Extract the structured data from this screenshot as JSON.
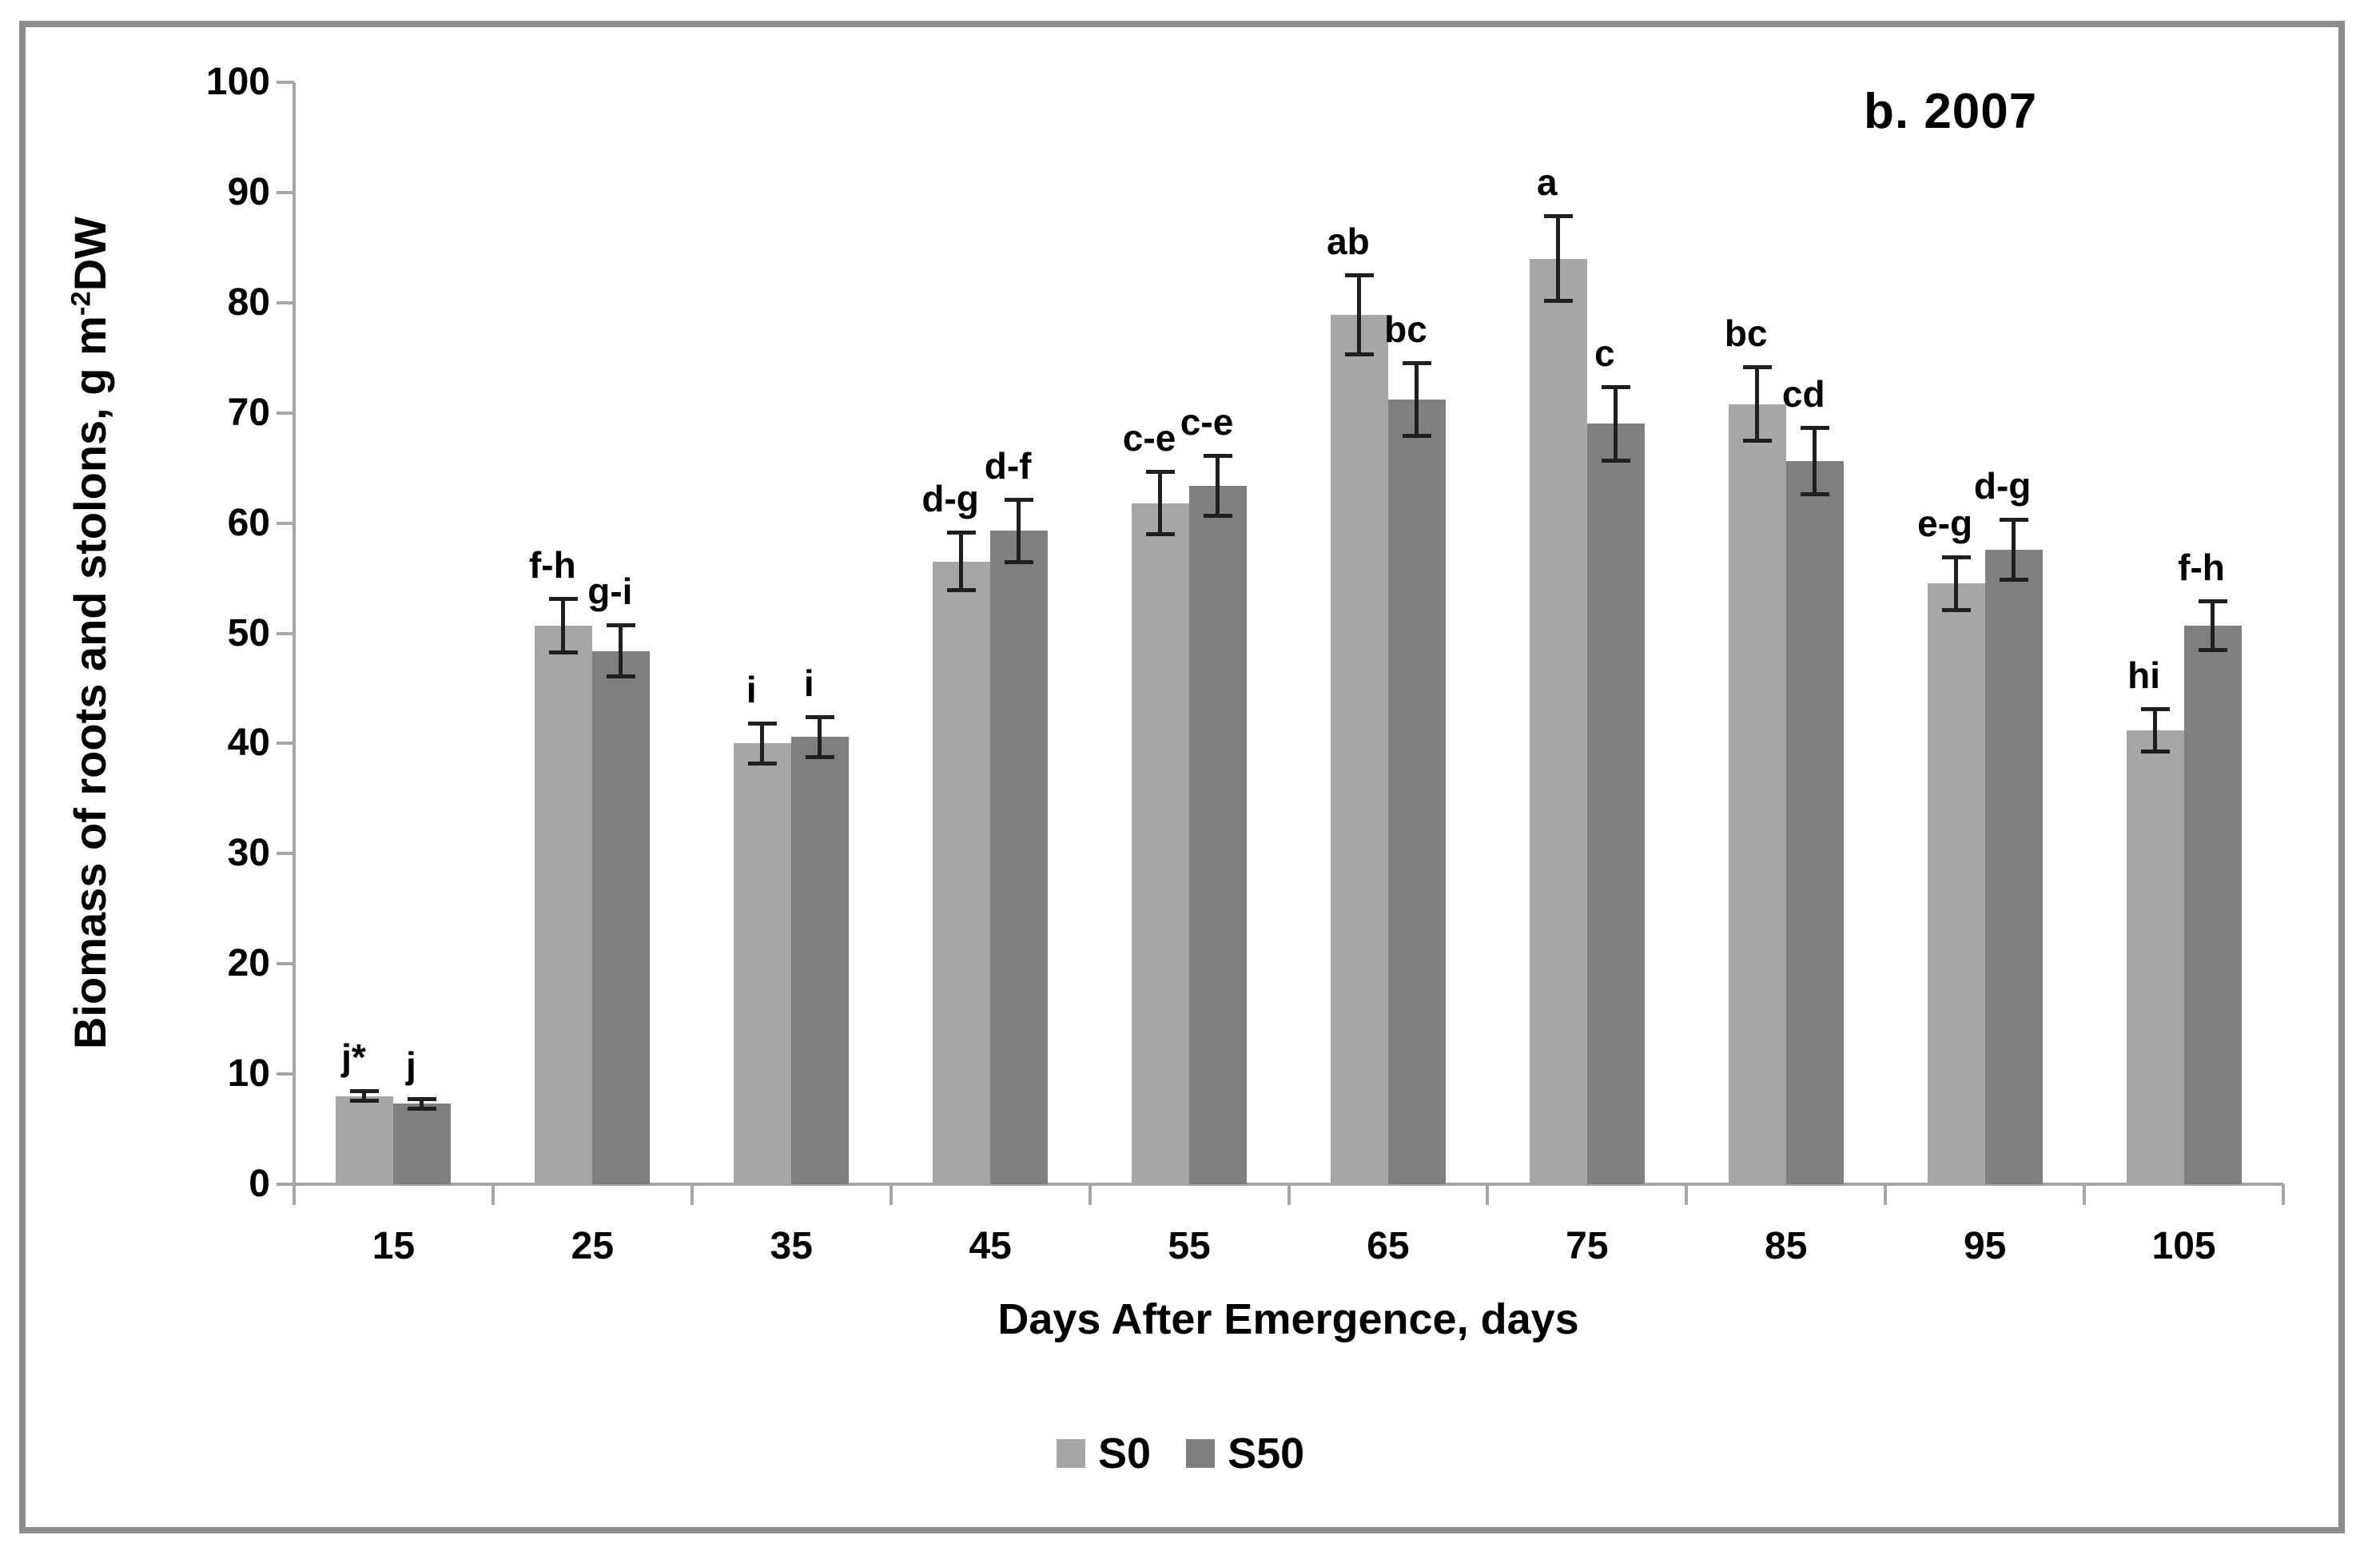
{
  "title": "b. 2007",
  "y_axis": {
    "title_main": "Biomass of roots and stolons, g m",
    "title_sup": "-2",
    "title_suffix": "DW",
    "tick_labels": [
      "0",
      "10",
      "20",
      "30",
      "40",
      "50",
      "60",
      "70",
      "80",
      "90",
      "100"
    ]
  },
  "x_axis": {
    "title": "Days After Emergence, days",
    "tick_labels": [
      "15",
      "25",
      "35",
      "45",
      "55",
      "65",
      "75",
      "85",
      "95",
      "105"
    ]
  },
  "legend": {
    "items": [
      {
        "label": "S0",
        "color": "#a6a6a6"
      },
      {
        "label": "S50",
        "color": "#7f7f7f"
      }
    ]
  },
  "chart_data": {
    "type": "bar",
    "title": "b. 2007",
    "categories": [
      "15",
      "25",
      "35",
      "45",
      "55",
      "65",
      "75",
      "85",
      "95",
      "105"
    ],
    "series": [
      {
        "name": "S0",
        "color": "#a6a6a6",
        "values": [
          8.0,
          50.7,
          40.0,
          56.5,
          61.8,
          78.9,
          84.0,
          70.8,
          54.5,
          41.2
        ],
        "errors": [
          0.6,
          2.6,
          2.0,
          2.8,
          3.0,
          3.8,
          4.0,
          3.5,
          2.6,
          2.1
        ],
        "letters": [
          "j*",
          "f-h",
          "i",
          "d-g",
          "c-e",
          "ab",
          "a",
          "bc",
          "e-g",
          "hi"
        ]
      },
      {
        "name": "S50",
        "color": "#7f7f7f",
        "values": [
          7.3,
          48.4,
          40.6,
          59.3,
          63.4,
          71.2,
          69.0,
          65.6,
          57.6,
          50.7
        ],
        "errors": [
          0.6,
          2.5,
          2.0,
          3.0,
          2.9,
          3.5,
          3.5,
          3.2,
          2.9,
          2.4
        ],
        "letters": [
          "j",
          "g-i",
          "i",
          "d-f",
          "c-e",
          "bc",
          "c",
          "cd",
          "d-g",
          "f-h"
        ]
      }
    ],
    "xlabel": "Days After Emergence, days",
    "ylabel": "Biomass of roots and stolons, g m-2 DW",
    "ylim": [
      0,
      100
    ],
    "ytick_step": 10,
    "grid": false,
    "legend_position": "bottom",
    "axis_color": "#a6a6a6",
    "error_bar_color": "#1f1f1f",
    "text_color": "#000000"
  }
}
